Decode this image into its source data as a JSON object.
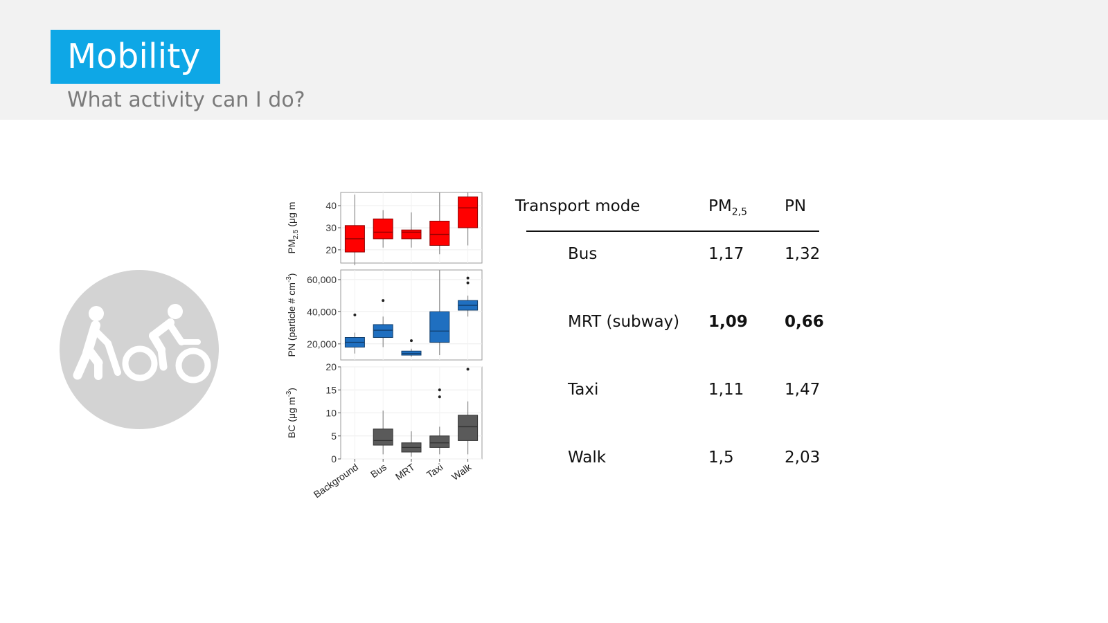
{
  "slide": {
    "title": "Mobility",
    "subtitle": "What activity can I do?",
    "icon": "walk-and-bike-icon",
    "colors": {
      "title_bg": "#0ea7e6",
      "header_bg": "#f2f2f2",
      "icon_circle": "#d3d3d3"
    }
  },
  "chart_data": {
    "type": "boxplot",
    "categories": [
      "Background",
      "Bus",
      "MRT",
      "Taxi",
      "Walk"
    ],
    "panels": [
      {
        "ylabel_main": "PM",
        "ylabel_sub": "2.5",
        "ylabel_rest": " (μg m",
        "color": "#ff0000",
        "ylim": [
          14,
          46
        ],
        "ticks": [
          "20",
          "30",
          "40"
        ],
        "tick_values": [
          20,
          30,
          40
        ],
        "boxes": [
          {
            "q1": 19,
            "median": 25,
            "q3": 31,
            "whisker_low": 13,
            "whisker_high": 45,
            "outliers": []
          },
          {
            "q1": 25,
            "median": 28,
            "q3": 34,
            "whisker_low": 21,
            "whisker_high": 38,
            "outliers": []
          },
          {
            "q1": 25,
            "median": 28,
            "q3": 29,
            "whisker_low": 21,
            "whisker_high": 37,
            "outliers": []
          },
          {
            "q1": 22,
            "median": 27,
            "q3": 33,
            "whisker_low": 18,
            "whisker_high": 46,
            "outliers": []
          },
          {
            "q1": 30,
            "median": 39,
            "q3": 44,
            "whisker_low": 22,
            "whisker_high": 46,
            "outliers": []
          }
        ]
      },
      {
        "ylabel_main": "PN (particle # cm",
        "ylabel_sub": "",
        "ylabel_rest": "",
        "ylabel_sup": "-3",
        "ylabel_end": ")",
        "color": "#1f6fc0",
        "ylim": [
          10000,
          66000
        ],
        "ticks": [
          "20,000",
          "40,000",
          "60,000"
        ],
        "tick_values": [
          20000,
          40000,
          60000
        ],
        "boxes": [
          {
            "q1": 18000,
            "median": 21000,
            "q3": 24000,
            "whisker_low": 14000,
            "whisker_high": 27000,
            "outliers": [
              38000
            ]
          },
          {
            "q1": 24000,
            "median": 28500,
            "q3": 32000,
            "whisker_low": 18000,
            "whisker_high": 37000,
            "outliers": [
              47000
            ]
          },
          {
            "q1": 13000,
            "median": 14000,
            "q3": 15500,
            "whisker_low": 12000,
            "whisker_high": 17000,
            "outliers": [
              22000
            ]
          },
          {
            "q1": 21000,
            "median": 28000,
            "q3": 40000,
            "whisker_low": 13000,
            "whisker_high": 66000,
            "outliers": []
          },
          {
            "q1": 41000,
            "median": 44000,
            "q3": 47000,
            "whisker_low": 37000,
            "whisker_high": 50000,
            "outliers": [
              58000,
              61000
            ]
          }
        ]
      },
      {
        "ylabel_main": "BC (μg m",
        "ylabel_sub": "",
        "ylabel_rest": "",
        "ylabel_sup": "-3",
        "ylabel_end": ")",
        "color": "#5a5a5a",
        "ylim": [
          0,
          20
        ],
        "ticks": [
          "0",
          "5",
          "10",
          "15",
          "20"
        ],
        "tick_values": [
          0,
          5,
          10,
          15,
          20
        ],
        "boxes": [
          {
            "q1": 0,
            "median": 0,
            "q3": 0,
            "whisker_low": 0,
            "whisker_high": 0,
            "outliers": []
          },
          {
            "q1": 3,
            "median": 4,
            "q3": 6.5,
            "whisker_low": 1,
            "whisker_high": 10.5,
            "outliers": []
          },
          {
            "q1": 1.5,
            "median": 2.5,
            "q3": 3.5,
            "whisker_low": 0.5,
            "whisker_high": 6,
            "outliers": []
          },
          {
            "q1": 2.5,
            "median": 3.5,
            "q3": 5,
            "whisker_low": 1,
            "whisker_high": 7,
            "outliers": [
              13.5,
              15
            ]
          },
          {
            "q1": 4,
            "median": 7,
            "q3": 9.5,
            "whisker_low": 1,
            "whisker_high": 12.5,
            "outliers": [
              19.5
            ]
          }
        ]
      }
    ]
  },
  "table": {
    "headers": {
      "mode": "Transport mode",
      "pm_main": "PM",
      "pm_sub": "2,5",
      "pn": "PN"
    },
    "rows": [
      {
        "mode": "Bus",
        "pm": "1,17",
        "pn": "1,32",
        "bold": false
      },
      {
        "mode": "MRT (subway)",
        "pm": "1,09",
        "pn": "0,66",
        "bold": true
      },
      {
        "mode": "Taxi",
        "pm": "1,11",
        "pn": "1,47",
        "bold": false
      },
      {
        "mode": "Walk",
        "pm": "1,5",
        "pn": "2,03",
        "bold": false
      }
    ]
  }
}
